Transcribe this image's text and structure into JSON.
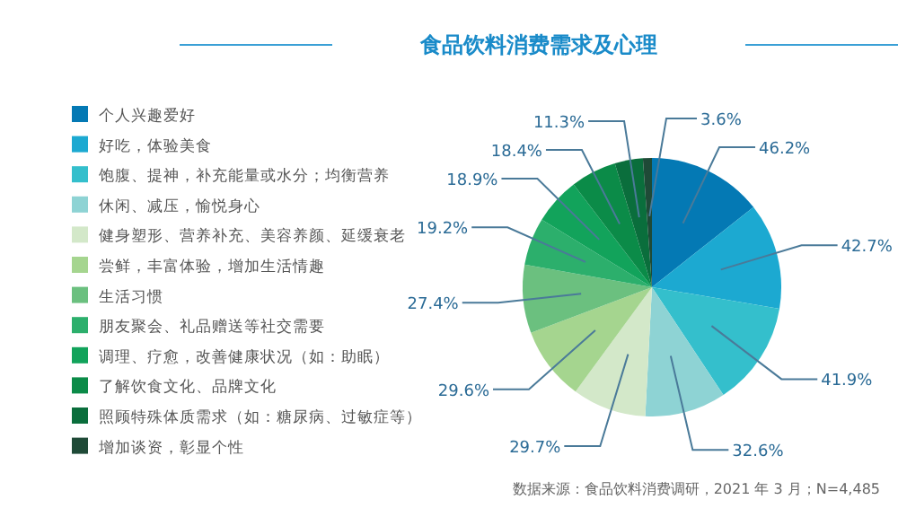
{
  "chart_data": {
    "type": "pie",
    "title": "食品饮料消费需求及心理",
    "categories": [
      "个人兴趣爱好",
      "好吃，体验美食",
      "饱腹、提神，补充能量或水分；均衡营养",
      "休闲、减压，愉悦身心",
      "健身塑形、营养补充、美容养颜、延缓衰老",
      "尝鲜，丰富体验，增加生活情趣",
      "生活习惯",
      "朋友聚会、礼品赠送等社交需要",
      "调理、疗愈，改善健康状况（如：助眠）",
      "了解饮食文化、品牌文化",
      "照顾特殊体质需求（如：糖尿病、过敏症等）",
      "增加谈资，彰显个性"
    ],
    "values": [
      46.2,
      42.7,
      41.9,
      32.6,
      29.7,
      29.6,
      27.4,
      19.2,
      18.9,
      18.4,
      11.3,
      3.6
    ],
    "colors": [
      "#0479b4",
      "#1ca9d1",
      "#34bfcc",
      "#8ed3d4",
      "#d3e8c9",
      "#a5d58f",
      "#6bc07f",
      "#2caf6c",
      "#12a35b",
      "#0b8b48",
      "#0a6e3c",
      "#1f4a37"
    ],
    "value_labels": [
      "46.2%",
      "42.7%",
      "41.9%",
      "32.6%",
      "29.7%",
      "29.6%",
      "27.4%",
      "19.2%",
      "18.9%",
      "18.4%",
      "11.3%",
      "3.6%"
    ],
    "legend": "left",
    "annotations": [
      "数据来源：食品饮料消费调研，2021 年 3 月；N=4,485"
    ]
  }
}
